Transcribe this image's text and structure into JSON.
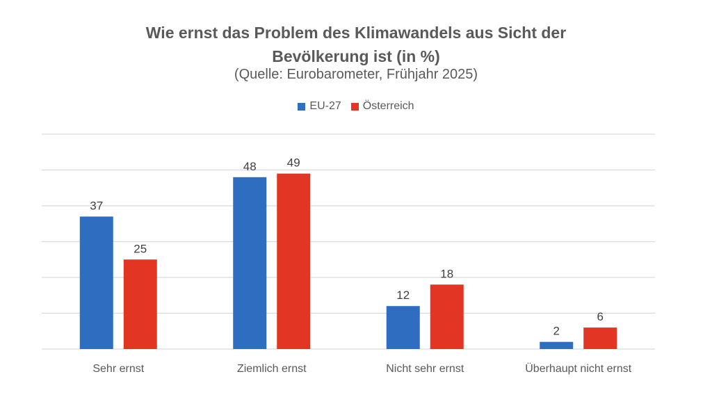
{
  "chart_data": {
    "type": "bar",
    "title_lines": [
      "Wie ernst das Problem des Klimawandels aus Sicht der",
      "Bevölkerung ist (in %)"
    ],
    "subtitle": "(Quelle: Eurobarometer, Frühjahr 2025)",
    "categories": [
      "Sehr ernst",
      "Ziemlich ernst",
      "Nicht sehr ernst",
      "Überhaupt nicht ernst"
    ],
    "series": [
      {
        "name": "EU-27",
        "color": "#2E6DBF",
        "values": [
          37,
          48,
          12,
          2
        ]
      },
      {
        "name": "Österreich",
        "color": "#E23523",
        "values": [
          25,
          49,
          18,
          6
        ]
      }
    ],
    "ylim": [
      0,
      60
    ],
    "grid": true,
    "legend_position": "top-center",
    "xlabel": "",
    "ylabel": ""
  }
}
